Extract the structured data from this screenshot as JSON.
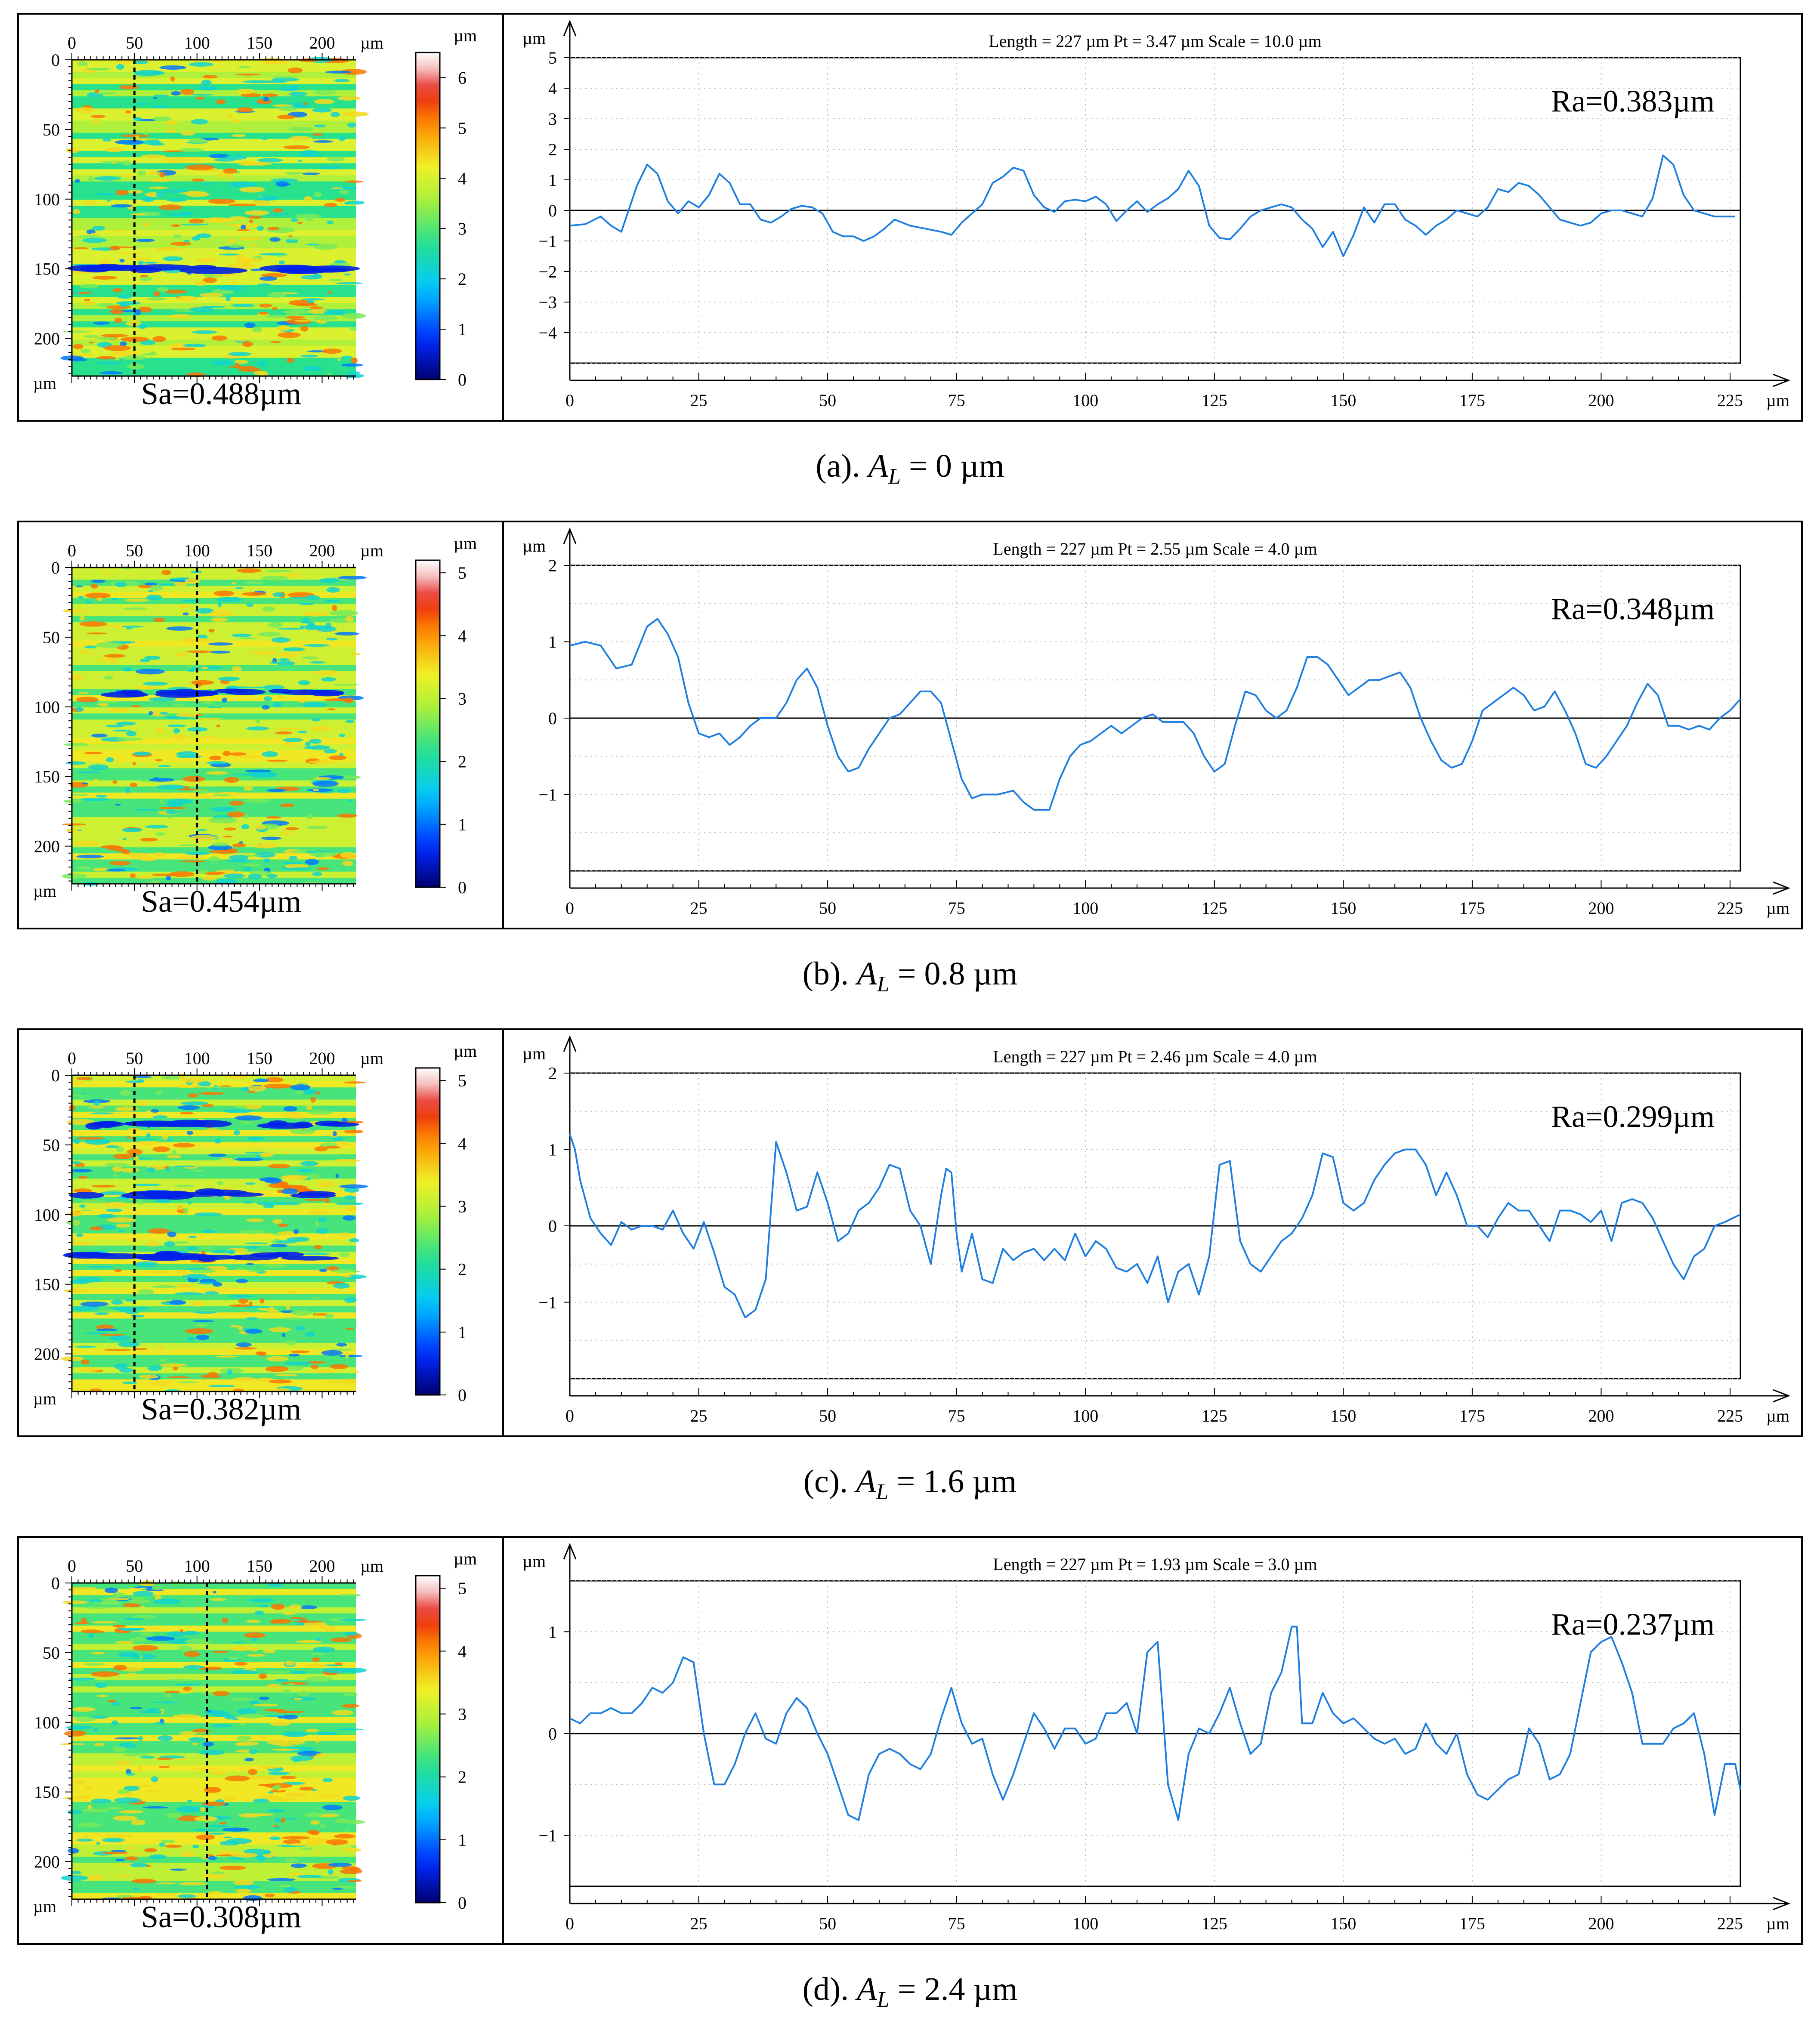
{
  "chart_data": [
    {
      "type": "line",
      "caption": {
        "label": "(a). ",
        "var": "A",
        "sub": "L",
        "rest": " = 0 µm"
      },
      "map": {
        "x_ticks": [
          "0",
          "50",
          "100",
          "150",
          "200"
        ],
        "x_unit": "µm",
        "y_ticks": [
          "0",
          "50",
          "100",
          "150",
          "200"
        ],
        "y_unit": "µm",
        "colorbar_ticks": [
          "0",
          "1",
          "2",
          "3",
          "4",
          "5",
          "6"
        ],
        "colorbar_max": 6.5,
        "colorbar_unit": "µm",
        "cut_x": 50,
        "sa_label": "Sa=0.488µm",
        "dominant": "yellow-green",
        "dark_band_y": [
          150
        ]
      },
      "profile": {
        "header": "Length = 227 µm    Pt = 3.47 µm  Scale = 10.0 µm",
        "ra_label": "Ra=0.383µm",
        "y_unit": "µm",
        "x_unit": "µm",
        "ylim": [
          -5,
          5
        ],
        "y_ticks": [
          5,
          4,
          3,
          2,
          1,
          0,
          -1,
          -2,
          -3,
          -4
        ],
        "xlim": [
          0,
          227
        ],
        "x_ticks": [
          0,
          25,
          50,
          75,
          100,
          125,
          150,
          175,
          200,
          225
        ],
        "x": [
          0,
          3,
          6,
          8,
          10,
          13,
          15,
          17,
          19,
          21,
          23,
          25,
          27,
          29,
          31,
          33,
          35,
          37,
          39,
          41,
          43,
          45,
          47,
          49,
          51,
          53,
          55,
          57,
          59,
          61,
          63,
          66,
          69,
          72,
          74,
          76,
          78,
          80,
          82,
          84,
          86,
          88,
          90,
          92,
          94,
          96,
          98,
          100,
          102,
          104,
          106,
          108,
          110,
          112,
          114,
          116,
          118,
          120,
          122,
          124,
          126,
          128,
          130,
          132,
          134,
          136,
          138,
          140,
          142,
          144,
          146,
          148,
          150,
          152,
          154,
          156,
          158,
          160,
          162,
          164,
          166,
          168,
          170,
          172,
          174,
          176,
          178,
          180,
          182,
          184,
          186,
          188,
          190,
          192,
          194,
          196,
          198,
          200,
          202,
          204,
          206,
          208,
          210,
          212,
          214,
          216,
          218,
          220,
          222,
          224,
          226
        ],
        "y": [
          -0.5,
          -0.45,
          -0.2,
          -0.5,
          -0.7,
          0.8,
          1.5,
          1.2,
          0.3,
          -0.1,
          0.3,
          0.1,
          0.5,
          1.2,
          0.9,
          0.2,
          0.2,
          -0.3,
          -0.4,
          -0.2,
          0.05,
          0.15,
          0.1,
          -0.1,
          -0.7,
          -0.85,
          -0.85,
          -1.0,
          -0.85,
          -0.6,
          -0.3,
          -0.5,
          -0.6,
          -0.7,
          -0.8,
          -0.4,
          -0.1,
          0.2,
          0.9,
          1.1,
          1.4,
          1.3,
          0.5,
          0.1,
          -0.05,
          0.3,
          0.35,
          0.3,
          0.45,
          0.2,
          -0.35,
          0.0,
          0.3,
          -0.05,
          0.2,
          0.4,
          0.7,
          1.3,
          0.8,
          -0.5,
          -0.9,
          -0.95,
          -0.6,
          -0.2,
          0.0,
          0.1,
          0.2,
          0.1,
          -0.3,
          -0.6,
          -1.2,
          -0.7,
          -1.5,
          -0.8,
          0.1,
          -0.4,
          0.2,
          0.2,
          -0.3,
          -0.5,
          -0.8,
          -0.5,
          -0.3,
          0.0,
          -0.1,
          -0.2,
          0.1,
          0.7,
          0.6,
          0.9,
          0.8,
          0.5,
          0.1,
          -0.3,
          -0.4,
          -0.5,
          -0.4,
          -0.1,
          0.0,
          0.0,
          -0.1,
          -0.2,
          0.4,
          1.8,
          1.5,
          0.5,
          0.0,
          -0.1,
          -0.2,
          -0.2,
          -0.2
        ]
      }
    },
    {
      "type": "line",
      "caption": {
        "label": "(b). ",
        "var": "A",
        "sub": "L",
        "rest": " = 0.8 µm"
      },
      "map": {
        "x_ticks": [
          "0",
          "50",
          "100",
          "150",
          "200"
        ],
        "x_unit": "µm",
        "y_ticks": [
          "0",
          "50",
          "100",
          "150",
          "200"
        ],
        "y_unit": "µm",
        "colorbar_ticks": [
          "0",
          "1",
          "2",
          "3",
          "4",
          "5"
        ],
        "colorbar_max": 5.2,
        "colorbar_unit": "µm",
        "cut_x": 100,
        "sa_label": "Sa=0.454µm",
        "dominant": "mixed",
        "dark_band_y": [
          90
        ]
      },
      "profile": {
        "header": "Length = 227 µm    Pt = 2.55 µm  Scale = 4.0 µm",
        "ra_label": "Ra=0.348µm",
        "y_unit": "µm",
        "x_unit": "µm",
        "ylim": [
          -2,
          2
        ],
        "y_ticks": [
          2,
          1,
          0,
          -1
        ],
        "xlim": [
          0,
          227
        ],
        "x_ticks": [
          0,
          25,
          50,
          75,
          100,
          125,
          150,
          175,
          200,
          225
        ],
        "x": [
          0,
          3,
          6,
          9,
          12,
          15,
          17,
          19,
          21,
          23,
          25,
          27,
          29,
          31,
          33,
          35,
          37,
          40,
          42,
          44,
          46,
          48,
          50,
          52,
          54,
          56,
          58,
          60,
          62,
          64,
          66,
          68,
          70,
          72,
          74,
          76,
          78,
          80,
          83,
          86,
          88,
          90,
          93,
          95,
          97,
          99,
          101,
          103,
          105,
          107,
          109,
          111,
          113,
          115,
          117,
          119,
          121,
          123,
          125,
          127,
          129,
          131,
          133,
          135,
          137,
          139,
          141,
          143,
          145,
          147,
          149,
          151,
          153,
          155,
          157,
          159,
          161,
          163,
          165,
          167,
          169,
          171,
          173,
          175,
          177,
          179,
          181,
          183,
          185,
          187,
          189,
          191,
          193,
          195,
          197,
          199,
          201,
          203,
          205,
          207,
          209,
          211,
          213,
          215,
          217,
          219,
          221,
          223,
          225,
          227
        ],
        "y": [
          0.95,
          1.0,
          0.95,
          0.65,
          0.7,
          1.2,
          1.3,
          1.1,
          0.8,
          0.2,
          -0.2,
          -0.25,
          -0.2,
          -0.35,
          -0.25,
          -0.1,
          0.0,
          0.0,
          0.2,
          0.5,
          0.65,
          0.4,
          -0.1,
          -0.5,
          -0.7,
          -0.65,
          -0.4,
          -0.2,
          0.0,
          0.05,
          0.2,
          0.35,
          0.35,
          0.2,
          -0.3,
          -0.8,
          -1.05,
          -1.0,
          -1.0,
          -0.95,
          -1.1,
          -1.2,
          -1.2,
          -0.8,
          -0.5,
          -0.35,
          -0.3,
          -0.2,
          -0.1,
          -0.2,
          -0.1,
          0.0,
          0.05,
          -0.05,
          -0.05,
          -0.05,
          -0.2,
          -0.5,
          -0.7,
          -0.6,
          -0.1,
          0.35,
          0.3,
          0.1,
          0.0,
          0.1,
          0.4,
          0.8,
          0.8,
          0.7,
          0.5,
          0.3,
          0.4,
          0.5,
          0.5,
          0.55,
          0.6,
          0.4,
          0.0,
          -0.3,
          -0.55,
          -0.65,
          -0.6,
          -0.3,
          0.1,
          0.2,
          0.3,
          0.4,
          0.3,
          0.1,
          0.15,
          0.35,
          0.1,
          -0.2,
          -0.6,
          -0.65,
          -0.5,
          -0.3,
          -0.1,
          0.2,
          0.45,
          0.3,
          -0.1,
          -0.1,
          -0.15,
          -0.1,
          -0.15,
          0.0,
          0.1,
          0.25
        ]
      }
    },
    {
      "type": "line",
      "caption": {
        "label": "(c). ",
        "var": "A",
        "sub": "L",
        "rest": " = 1.6 µm"
      },
      "map": {
        "x_ticks": [
          "0",
          "50",
          "100",
          "150",
          "200"
        ],
        "x_unit": "µm",
        "y_ticks": [
          "0",
          "50",
          "100",
          "150",
          "200"
        ],
        "y_unit": "µm",
        "colorbar_ticks": [
          "0",
          "1",
          "2",
          "3",
          "4",
          "5"
        ],
        "colorbar_max": 5.2,
        "colorbar_unit": "µm",
        "cut_x": 50,
        "sa_label": "Sa=0.382µm",
        "dominant": "mixed",
        "dark_band_y": [
          35,
          85,
          130
        ]
      },
      "profile": {
        "header": "Length = 227 µm    Pt = 2.46 µm  Scale = 4.0 µm",
        "ra_label": "Ra=0.299µm",
        "y_unit": "µm",
        "x_unit": "µm",
        "ylim": [
          -2,
          2
        ],
        "y_ticks": [
          2,
          1,
          0,
          -1
        ],
        "xlim": [
          0,
          227
        ],
        "x_ticks": [
          0,
          25,
          50,
          75,
          100,
          125,
          150,
          175,
          200,
          225
        ],
        "x": [
          0,
          1,
          2,
          4,
          6,
          8,
          10,
          12,
          14,
          16,
          18,
          20,
          22,
          24,
          26,
          28,
          30,
          32,
          34,
          36,
          38,
          40,
          42,
          44,
          46,
          48,
          50,
          52,
          54,
          56,
          58,
          60,
          62,
          64,
          66,
          68,
          70,
          72,
          73,
          74,
          75,
          76,
          78,
          80,
          82,
          84,
          86,
          88,
          90,
          92,
          94,
          96,
          98,
          100,
          102,
          104,
          106,
          108,
          110,
          112,
          114,
          116,
          118,
          120,
          122,
          124,
          126,
          128,
          130,
          132,
          134,
          136,
          138,
          140,
          142,
          144,
          146,
          148,
          150,
          152,
          154,
          156,
          158,
          160,
          162,
          164,
          166,
          168,
          170,
          172,
          174,
          176,
          178,
          180,
          182,
          184,
          186,
          188,
          190,
          192,
          194,
          196,
          198,
          200,
          202,
          204,
          206,
          208,
          210,
          212,
          214,
          216,
          218,
          220,
          222,
          224,
          227
        ],
        "y": [
          1.2,
          1.0,
          0.6,
          0.1,
          -0.1,
          -0.25,
          0.05,
          -0.05,
          0.0,
          0.0,
          -0.05,
          0.2,
          -0.1,
          -0.3,
          0.05,
          -0.35,
          -0.8,
          -0.9,
          -1.2,
          -1.1,
          -0.7,
          1.1,
          0.7,
          0.2,
          0.25,
          0.7,
          0.3,
          -0.2,
          -0.1,
          0.2,
          0.3,
          0.5,
          0.8,
          0.75,
          0.2,
          0.0,
          -0.5,
          0.4,
          0.75,
          0.7,
          -0.1,
          -0.6,
          -0.1,
          -0.7,
          -0.75,
          -0.3,
          -0.45,
          -0.35,
          -0.3,
          -0.45,
          -0.3,
          -0.45,
          -0.1,
          -0.4,
          -0.2,
          -0.3,
          -0.55,
          -0.6,
          -0.5,
          -0.75,
          -0.4,
          -1.0,
          -0.6,
          -0.5,
          -0.9,
          -0.4,
          0.8,
          0.85,
          -0.2,
          -0.5,
          -0.6,
          -0.4,
          -0.2,
          -0.1,
          0.1,
          0.4,
          0.95,
          0.9,
          0.3,
          0.2,
          0.3,
          0.6,
          0.8,
          0.95,
          1.0,
          1.0,
          0.8,
          0.4,
          0.7,
          0.4,
          0.0,
          0.0,
          -0.15,
          0.1,
          0.3,
          0.2,
          0.2,
          0.0,
          -0.2,
          0.2,
          0.2,
          0.15,
          0.05,
          0.2,
          -0.2,
          0.3,
          0.35,
          0.3,
          0.1,
          -0.2,
          -0.5,
          -0.7,
          -0.4,
          -0.3,
          0.0,
          0.05,
          0.15
        ]
      }
    },
    {
      "type": "line",
      "caption": {
        "label": "(d). ",
        "var": "A",
        "sub": "L",
        "rest": " = 2.4 µm"
      },
      "map": {
        "x_ticks": [
          "0",
          "50",
          "100",
          "150",
          "200"
        ],
        "x_unit": "µm",
        "y_ticks": [
          "0",
          "50",
          "100",
          "150",
          "200"
        ],
        "y_unit": "µm",
        "colorbar_ticks": [
          "0",
          "1",
          "2",
          "3",
          "4",
          "5"
        ],
        "colorbar_max": 5.2,
        "colorbar_unit": "µm",
        "cut_x": 108,
        "sa_label": "Sa=0.308µm",
        "dominant": "green",
        "dark_band_y": []
      },
      "profile": {
        "header": "Length = 227 µm    Pt = 1.93 µm  Scale = 3.0 µm",
        "ra_label": "Ra=0.237µm",
        "y_unit": "µm",
        "x_unit": "µm",
        "ylim": [
          -1.5,
          1.5
        ],
        "y_ticks": [
          1,
          0,
          -1
        ],
        "xlim": [
          0,
          227
        ],
        "x_ticks": [
          0,
          25,
          50,
          75,
          100,
          125,
          150,
          175,
          200,
          225
        ],
        "x": [
          0,
          2,
          4,
          6,
          8,
          10,
          12,
          14,
          16,
          18,
          20,
          22,
          24,
          26,
          28,
          30,
          32,
          34,
          36,
          38,
          40,
          42,
          44,
          46,
          48,
          50,
          52,
          54,
          56,
          58,
          60,
          62,
          64,
          66,
          68,
          70,
          72,
          74,
          76,
          78,
          80,
          82,
          84,
          86,
          88,
          90,
          92,
          94,
          96,
          98,
          100,
          102,
          104,
          106,
          108,
          110,
          112,
          114,
          116,
          118,
          120,
          122,
          124,
          126,
          128,
          130,
          132,
          134,
          136,
          138,
          140,
          141,
          142,
          144,
          146,
          148,
          150,
          152,
          154,
          156,
          158,
          160,
          162,
          164,
          166,
          168,
          170,
          172,
          174,
          176,
          178,
          180,
          182,
          184,
          186,
          188,
          190,
          192,
          194,
          196,
          198,
          200,
          202,
          204,
          206,
          208,
          210,
          212,
          214,
          216,
          218,
          220,
          222,
          224,
          226,
          227
        ],
        "y": [
          0.15,
          0.1,
          0.2,
          0.2,
          0.25,
          0.2,
          0.2,
          0.3,
          0.45,
          0.4,
          0.5,
          0.75,
          0.7,
          0.0,
          -0.5,
          -0.5,
          -0.3,
          0.0,
          0.2,
          -0.05,
          -0.1,
          0.2,
          0.35,
          0.25,
          0.0,
          -0.2,
          -0.5,
          -0.8,
          -0.85,
          -0.4,
          -0.2,
          -0.15,
          -0.2,
          -0.3,
          -0.35,
          -0.2,
          0.15,
          0.45,
          0.1,
          -0.1,
          -0.05,
          -0.4,
          -0.65,
          -0.4,
          -0.1,
          0.2,
          0.05,
          -0.15,
          0.05,
          0.05,
          -0.1,
          -0.05,
          0.2,
          0.2,
          0.3,
          0.0,
          0.8,
          0.9,
          -0.5,
          -0.85,
          -0.2,
          0.05,
          0.0,
          0.2,
          0.45,
          0.1,
          -0.2,
          -0.1,
          0.4,
          0.6,
          1.05,
          1.05,
          0.1,
          0.1,
          0.4,
          0.2,
          0.1,
          0.15,
          0.05,
          -0.05,
          -0.1,
          -0.05,
          -0.2,
          -0.15,
          0.1,
          -0.1,
          -0.2,
          0.0,
          -0.4,
          -0.6,
          -0.65,
          -0.55,
          -0.45,
          -0.4,
          0.05,
          -0.1,
          -0.45,
          -0.4,
          -0.2,
          0.3,
          0.8,
          0.9,
          0.95,
          0.7,
          0.4,
          -0.1,
          -0.1,
          -0.1,
          0.05,
          0.1,
          0.2,
          -0.2,
          -0.8,
          -0.3,
          -0.3,
          -0.55
        ]
      }
    }
  ]
}
